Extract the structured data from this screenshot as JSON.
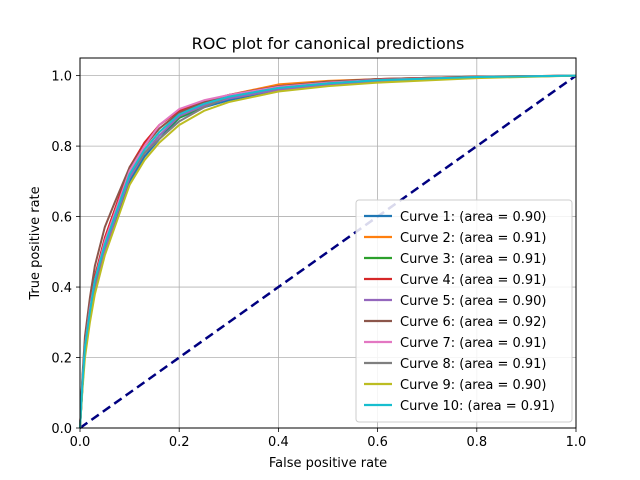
{
  "chart_data": {
    "type": "line",
    "title": "ROC plot for canonical predictions",
    "xlabel": "False positive rate",
    "ylabel": "True positive rate",
    "xlim": [
      0.0,
      1.0
    ],
    "ylim": [
      0.0,
      1.05
    ],
    "xticks": [
      "0.0",
      "0.2",
      "0.4",
      "0.6",
      "0.8",
      "1.0"
    ],
    "yticks": [
      "0.0",
      "0.2",
      "0.4",
      "0.6",
      "0.8",
      "1.0"
    ],
    "grid": true,
    "legend_position": "lower-right",
    "series": [
      {
        "name": "Curve 1: (area = 0.90)",
        "color": "#1f77b4",
        "x": [
          0,
          0.005,
          0.01,
          0.02,
          0.03,
          0.05,
          0.07,
          0.1,
          0.13,
          0.16,
          0.2,
          0.25,
          0.3,
          0.4,
          0.5,
          0.6,
          0.8,
          1.0
        ],
        "y": [
          0,
          0.12,
          0.22,
          0.32,
          0.4,
          0.5,
          0.58,
          0.7,
          0.77,
          0.82,
          0.88,
          0.91,
          0.93,
          0.96,
          0.975,
          0.985,
          0.995,
          1.0
        ]
      },
      {
        "name": "Curve 2: (area = 0.91)",
        "color": "#ff7f0e",
        "x": [
          0,
          0.005,
          0.01,
          0.02,
          0.03,
          0.05,
          0.07,
          0.1,
          0.13,
          0.16,
          0.2,
          0.25,
          0.3,
          0.4,
          0.5,
          0.6,
          0.8,
          1.0
        ],
        "y": [
          0,
          0.13,
          0.23,
          0.33,
          0.41,
          0.52,
          0.6,
          0.72,
          0.79,
          0.84,
          0.89,
          0.92,
          0.945,
          0.975,
          0.985,
          0.99,
          0.997,
          1.0
        ]
      },
      {
        "name": "Curve 3: (area = 0.91)",
        "color": "#2ca02c",
        "x": [
          0,
          0.005,
          0.01,
          0.02,
          0.03,
          0.05,
          0.07,
          0.1,
          0.13,
          0.16,
          0.2,
          0.25,
          0.3,
          0.4,
          0.5,
          0.6,
          0.8,
          1.0
        ],
        "y": [
          0,
          0.12,
          0.22,
          0.33,
          0.41,
          0.51,
          0.59,
          0.71,
          0.78,
          0.83,
          0.88,
          0.915,
          0.94,
          0.965,
          0.98,
          0.988,
          0.996,
          1.0
        ]
      },
      {
        "name": "Curve 4: (area = 0.91)",
        "color": "#d62728",
        "x": [
          0,
          0.005,
          0.01,
          0.02,
          0.03,
          0.05,
          0.07,
          0.1,
          0.13,
          0.16,
          0.2,
          0.25,
          0.3,
          0.4,
          0.5,
          0.6,
          0.8,
          1.0
        ],
        "y": [
          0,
          0.14,
          0.24,
          0.35,
          0.43,
          0.54,
          0.62,
          0.74,
          0.81,
          0.86,
          0.9,
          0.925,
          0.945,
          0.97,
          0.982,
          0.99,
          0.997,
          1.0
        ]
      },
      {
        "name": "Curve 5: (area = 0.90)",
        "color": "#9467bd",
        "x": [
          0,
          0.005,
          0.01,
          0.02,
          0.03,
          0.05,
          0.07,
          0.1,
          0.13,
          0.16,
          0.2,
          0.25,
          0.3,
          0.4,
          0.5,
          0.6,
          0.8,
          1.0
        ],
        "y": [
          0,
          0.12,
          0.22,
          0.32,
          0.4,
          0.5,
          0.59,
          0.71,
          0.78,
          0.83,
          0.885,
          0.915,
          0.935,
          0.96,
          0.975,
          0.985,
          0.995,
          1.0
        ]
      },
      {
        "name": "Curve 6: (area = 0.92)",
        "color": "#8c564b",
        "x": [
          0,
          0.005,
          0.01,
          0.02,
          0.03,
          0.05,
          0.07,
          0.1,
          0.13,
          0.16,
          0.2,
          0.25,
          0.3,
          0.4,
          0.5,
          0.6,
          0.8,
          1.0
        ],
        "y": [
          0,
          0.15,
          0.26,
          0.37,
          0.46,
          0.57,
          0.64,
          0.74,
          0.8,
          0.85,
          0.895,
          0.925,
          0.945,
          0.97,
          0.983,
          0.99,
          0.997,
          1.0
        ]
      },
      {
        "name": "Curve 7: (area = 0.91)",
        "color": "#e377c2",
        "x": [
          0,
          0.005,
          0.01,
          0.02,
          0.03,
          0.05,
          0.07,
          0.1,
          0.13,
          0.16,
          0.2,
          0.25,
          0.3,
          0.4,
          0.5,
          0.6,
          0.8,
          1.0
        ],
        "y": [
          0,
          0.13,
          0.23,
          0.34,
          0.42,
          0.53,
          0.61,
          0.73,
          0.8,
          0.86,
          0.905,
          0.93,
          0.945,
          0.968,
          0.98,
          0.988,
          0.996,
          1.0
        ]
      },
      {
        "name": "Curve 8: (area = 0.91)",
        "color": "#7f7f7f",
        "x": [
          0,
          0.005,
          0.01,
          0.02,
          0.03,
          0.05,
          0.07,
          0.1,
          0.13,
          0.16,
          0.2,
          0.25,
          0.3,
          0.4,
          0.5,
          0.6,
          0.8,
          1.0
        ],
        "y": [
          0,
          0.12,
          0.22,
          0.33,
          0.41,
          0.52,
          0.6,
          0.72,
          0.78,
          0.82,
          0.87,
          0.91,
          0.94,
          0.965,
          0.978,
          0.987,
          0.996,
          1.0
        ]
      },
      {
        "name": "Curve 9: (area = 0.90)",
        "color": "#bcbd22",
        "x": [
          0,
          0.005,
          0.01,
          0.02,
          0.03,
          0.05,
          0.07,
          0.1,
          0.13,
          0.16,
          0.2,
          0.25,
          0.3,
          0.4,
          0.5,
          0.6,
          0.8,
          1.0
        ],
        "y": [
          0,
          0.11,
          0.2,
          0.3,
          0.38,
          0.49,
          0.57,
          0.69,
          0.76,
          0.81,
          0.86,
          0.9,
          0.925,
          0.955,
          0.97,
          0.98,
          0.993,
          1.0
        ]
      },
      {
        "name": "Curve 10: (area = 0.91)",
        "color": "#17becf",
        "x": [
          0,
          0.005,
          0.01,
          0.02,
          0.03,
          0.05,
          0.07,
          0.1,
          0.13,
          0.16,
          0.2,
          0.25,
          0.3,
          0.4,
          0.5,
          0.6,
          0.8,
          1.0
        ],
        "y": [
          0,
          0.13,
          0.23,
          0.33,
          0.42,
          0.52,
          0.6,
          0.72,
          0.79,
          0.84,
          0.89,
          0.92,
          0.94,
          0.965,
          0.978,
          0.987,
          0.996,
          1.0
        ]
      }
    ],
    "reference_line": {
      "x": [
        0,
        1
      ],
      "y": [
        0,
        1
      ],
      "color": "#000080",
      "style": "dashed"
    }
  }
}
